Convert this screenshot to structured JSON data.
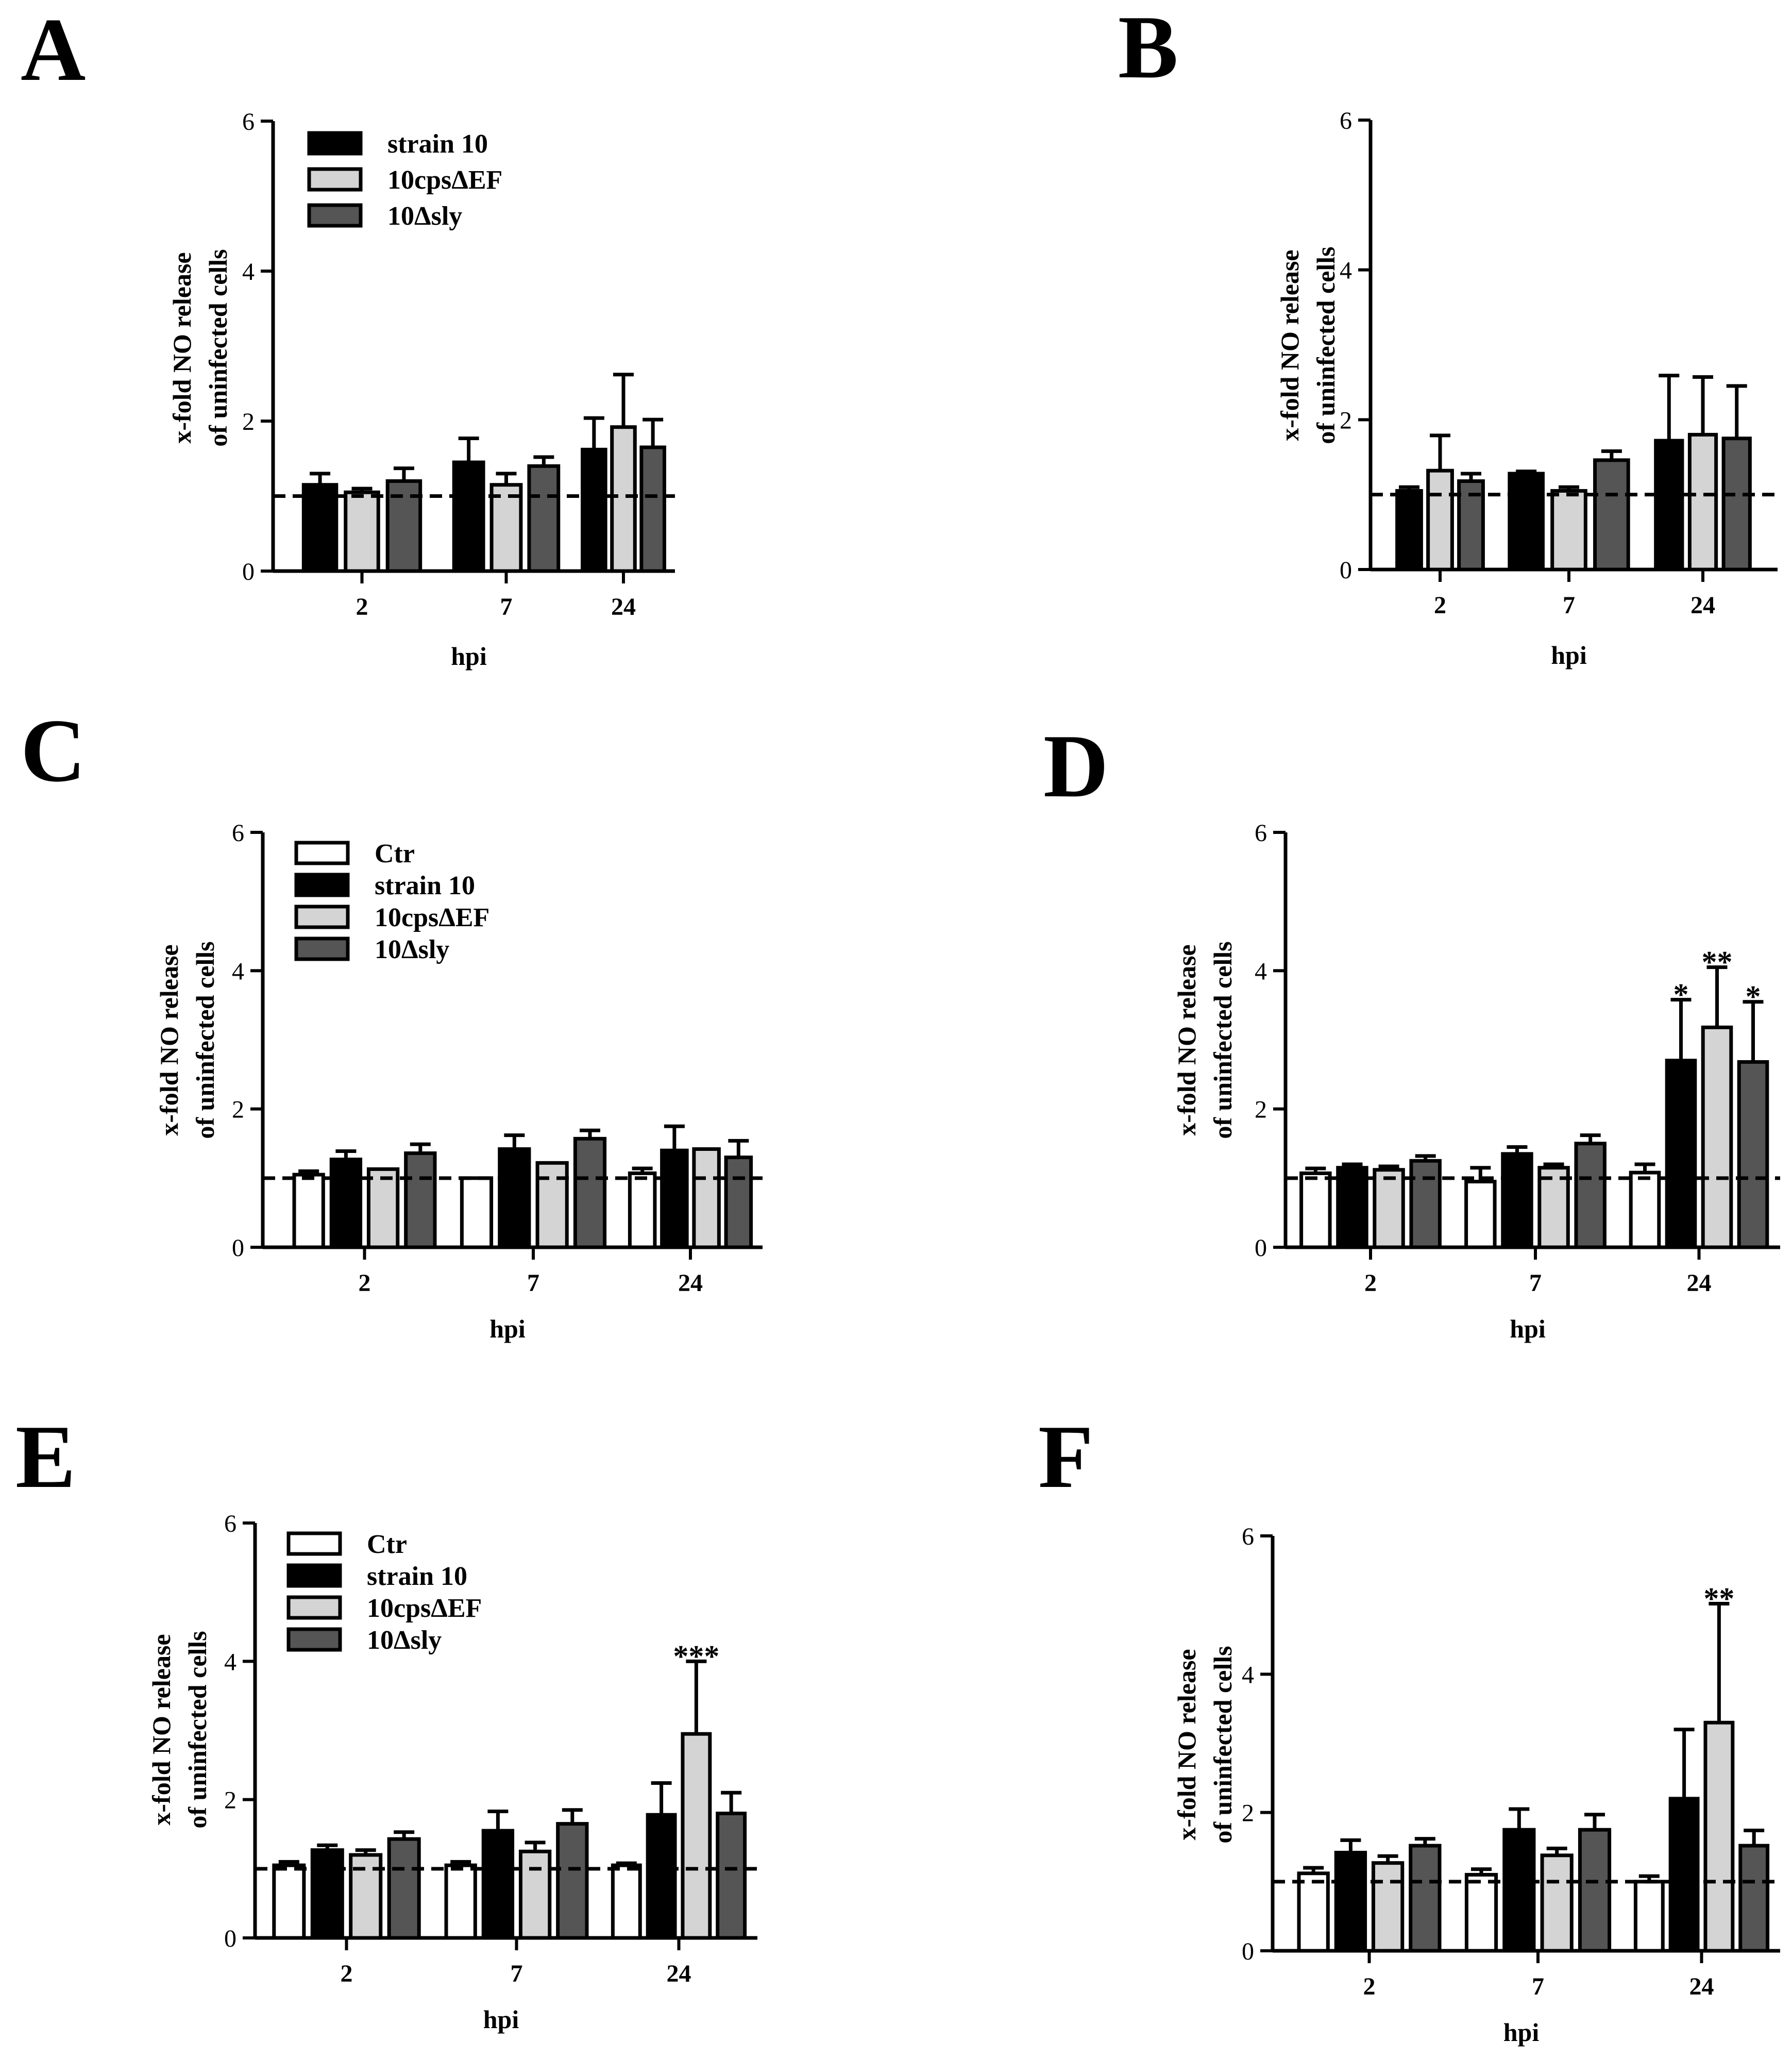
{
  "figure": {
    "series_colors": {
      "Ctr": "#ffffff",
      "strain 10": "#000000",
      "10cpsΔEF": "#d4d4d4",
      "10Δsly": "#555555"
    }
  },
  "chart_data": [
    {
      "panel": "A",
      "type": "bar",
      "xlabel": "hpi",
      "ylabel": [
        "x-fold NO release",
        "of uninfected cells"
      ],
      "ylim": [
        0,
        6
      ],
      "yticks": [
        "0",
        "2",
        "4",
        "6"
      ],
      "categories": [
        "2",
        "7",
        "24"
      ],
      "reference_line": 1,
      "legend_placement": "top-left",
      "series": [
        {
          "name": "strain 10",
          "color": "#000000",
          "values": [
            1.15,
            1.45,
            1.62
          ],
          "errors": [
            0.15,
            0.32,
            0.42
          ]
        },
        {
          "name": "10cpsΔEF",
          "color": "#d4d4d4",
          "values": [
            1.05,
            1.15,
            1.92
          ],
          "errors": [
            0.05,
            0.15,
            0.7
          ]
        },
        {
          "name": "10Δsly",
          "color": "#555555",
          "values": [
            1.2,
            1.4,
            1.65
          ],
          "errors": [
            0.17,
            0.12,
            0.37
          ]
        }
      ],
      "annotations": [
        "",
        "",
        ""
      ]
    },
    {
      "panel": "B",
      "type": "bar",
      "xlabel": "hpi",
      "ylabel": [
        "x-fold NO release",
        "of uninfected cells"
      ],
      "ylim": [
        0,
        6
      ],
      "yticks": [
        "0",
        "2",
        "4",
        "6"
      ],
      "categories": [
        "2",
        "7",
        "24"
      ],
      "reference_line": 1,
      "legend_placement": "none",
      "series": [
        {
          "name": "strain 10",
          "color": "#000000",
          "values": [
            1.05,
            1.28,
            1.72
          ],
          "errors": [
            0.05,
            0.03,
            0.87
          ]
        },
        {
          "name": "10cpsΔEF",
          "color": "#d4d4d4",
          "values": [
            1.32,
            1.05,
            1.8
          ],
          "errors": [
            0.47,
            0.05,
            0.77
          ]
        },
        {
          "name": "10Δsly",
          "color": "#555555",
          "values": [
            1.18,
            1.46,
            1.75
          ],
          "errors": [
            0.1,
            0.12,
            0.7
          ]
        }
      ],
      "annotations": [
        "",
        "",
        ""
      ]
    },
    {
      "panel": "C",
      "type": "bar",
      "xlabel": "hpi",
      "ylabel": [
        "x-fold NO release",
        "of uninfected cells"
      ],
      "ylim": [
        0,
        6
      ],
      "yticks": [
        "0",
        "2",
        "4",
        "6"
      ],
      "categories": [
        "2",
        "7",
        "24"
      ],
      "reference_line": 1,
      "legend_placement": "top-left",
      "series": [
        {
          "name": "Ctr",
          "color": "#ffffff",
          "values": [
            1.05,
            1.0,
            1.07
          ],
          "errors": [
            0.05,
            0.0,
            0.07
          ]
        },
        {
          "name": "strain 10",
          "color": "#000000",
          "values": [
            1.27,
            1.42,
            1.4
          ],
          "errors": [
            0.12,
            0.2,
            0.35
          ]
        },
        {
          "name": "10cpsΔEF",
          "color": "#d4d4d4",
          "values": [
            1.13,
            1.22,
            1.42
          ],
          "errors": [
            0.0,
            0.0,
            0.0
          ]
        },
        {
          "name": "10Δsly",
          "color": "#555555",
          "values": [
            1.36,
            1.57,
            1.3
          ],
          "errors": [
            0.13,
            0.12,
            0.24
          ]
        }
      ],
      "annotations": [
        "",
        "",
        "",
        ""
      ]
    },
    {
      "panel": "D",
      "type": "bar",
      "xlabel": "hpi",
      "ylabel": [
        "x-fold NO release",
        "of uninfected cells"
      ],
      "ylim": [
        0,
        6
      ],
      "yticks": [
        "0",
        "2",
        "4",
        "6"
      ],
      "categories": [
        "2",
        "7",
        "24"
      ],
      "reference_line": 1,
      "legend_placement": "none",
      "series": [
        {
          "name": "Ctr",
          "color": "#ffffff",
          "values": [
            1.07,
            0.95,
            1.08
          ],
          "errors": [
            0.07,
            0.2,
            0.12
          ]
        },
        {
          "name": "strain 10",
          "color": "#000000",
          "values": [
            1.15,
            1.35,
            2.7
          ],
          "errors": [
            0.05,
            0.1,
            0.88
          ]
        },
        {
          "name": "10cpsΔEF",
          "color": "#d4d4d4",
          "values": [
            1.12,
            1.15,
            3.18
          ],
          "errors": [
            0.05,
            0.05,
            0.87
          ]
        },
        {
          "name": "10Δsly",
          "color": "#555555",
          "values": [
            1.25,
            1.5,
            2.68
          ],
          "errors": [
            0.07,
            0.12,
            0.87
          ]
        }
      ],
      "annotations": [
        "",
        "*",
        "**",
        "*"
      ]
    },
    {
      "panel": "E",
      "type": "bar",
      "xlabel": "hpi",
      "ylabel": [
        "x-fold NO release",
        "of uninfected cells"
      ],
      "ylim": [
        0,
        6
      ],
      "yticks": [
        "0",
        "2",
        "4",
        "6"
      ],
      "categories": [
        "2",
        "7",
        "24"
      ],
      "reference_line": 1,
      "legend_placement": "top-left",
      "series": [
        {
          "name": "Ctr",
          "color": "#ffffff",
          "values": [
            1.05,
            1.05,
            1.05
          ],
          "errors": [
            0.05,
            0.05,
            0.03
          ]
        },
        {
          "name": "strain 10",
          "color": "#000000",
          "values": [
            1.27,
            1.55,
            1.78
          ],
          "errors": [
            0.07,
            0.28,
            0.46
          ]
        },
        {
          "name": "10cpsΔEF",
          "color": "#d4d4d4",
          "values": [
            1.2,
            1.25,
            2.95
          ],
          "errors": [
            0.07,
            0.13,
            1.05
          ]
        },
        {
          "name": "10Δsly",
          "color": "#555555",
          "values": [
            1.43,
            1.65,
            1.8
          ],
          "errors": [
            0.1,
            0.2,
            0.3
          ]
        }
      ],
      "annotations": [
        "",
        "",
        "***",
        ""
      ]
    },
    {
      "panel": "F",
      "type": "bar",
      "xlabel": "hpi",
      "ylabel": [
        "x-fold NO release",
        "of uninfected cells"
      ],
      "ylim": [
        0,
        6
      ],
      "yticks": [
        "0",
        "2",
        "4",
        "6"
      ],
      "categories": [
        "2",
        "7",
        "24"
      ],
      "reference_line": 1,
      "legend_placement": "none",
      "series": [
        {
          "name": "Ctr",
          "color": "#ffffff",
          "values": [
            1.12,
            1.1,
            1.0
          ],
          "errors": [
            0.08,
            0.08,
            0.08
          ]
        },
        {
          "name": "strain 10",
          "color": "#000000",
          "values": [
            1.42,
            1.75,
            2.2
          ],
          "errors": [
            0.18,
            0.3,
            1.0
          ]
        },
        {
          "name": "10cpsΔEF",
          "color": "#d4d4d4",
          "values": [
            1.27,
            1.38,
            3.3
          ],
          "errors": [
            0.1,
            0.1,
            1.72
          ]
        },
        {
          "name": "10Δsly",
          "color": "#555555",
          "values": [
            1.52,
            1.75,
            1.52
          ],
          "errors": [
            0.1,
            0.22,
            0.22
          ]
        }
      ],
      "annotations": [
        "",
        "",
        "**",
        ""
      ]
    }
  ]
}
